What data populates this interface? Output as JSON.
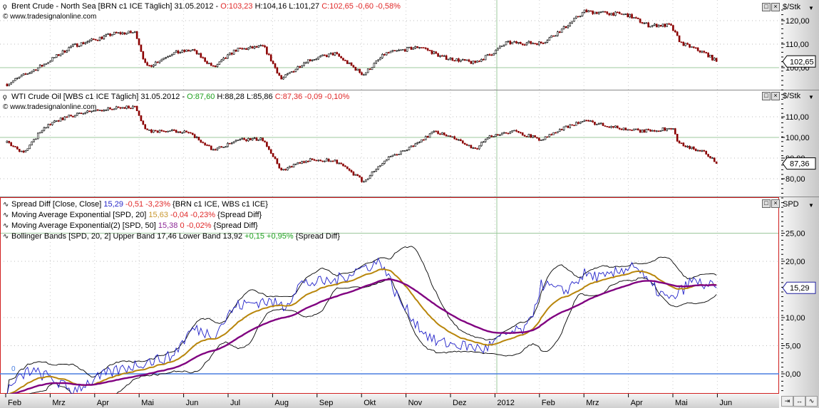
{
  "panels": {
    "brent": {
      "title": "Brent Crude - North Sea [BRN c1 ICE  Täglich] 31.05.2012 - ",
      "open": "O:103,23",
      "hl": " H:104,16 L:101,27 ",
      "close": "C:102,65 -0,60 -0,58%",
      "copyright": "www.tradesignalonline.com",
      "unit": "$/Stk",
      "ticks": [
        {
          "v": 120,
          "label": "120,00"
        },
        {
          "v": 110,
          "label": "110,00"
        },
        {
          "v": 100,
          "label": "100,00"
        }
      ],
      "last_label": "102,65",
      "last_value": 102.65
    },
    "wti": {
      "title": "WTI Crude Oil [WBS c1 ICE  Täglich] 31.05.2012 - ",
      "open": "O:87,60",
      "hl": " H:88,28 L:85,86 ",
      "close": "C:87,36 -0,09 -0,10%",
      "copyright": "www.tradesignalonline.com",
      "unit": "$/Stk",
      "ticks": [
        {
          "v": 110,
          "label": "110,00"
        },
        {
          "v": 100,
          "label": "100,00"
        },
        {
          "v": 90,
          "label": "90,00"
        },
        {
          "v": 80,
          "label": "80,00"
        }
      ],
      "last_label": "87,36",
      "last_value": 87.36
    },
    "spread": {
      "unit": "SPD",
      "zero_label": "0",
      "legend": [
        {
          "name": "Spread Diff [Close, Close] ",
          "v1": "15,29",
          "v1c": "blue",
          "v2": " -0,51 -3,23%",
          "v2c": "red",
          "tail": " {BRN c1 ICE, WBS c1 ICE}"
        },
        {
          "name": "Moving Average Exponential [SPD, 20] ",
          "v1": "15,63",
          "v1c": "gold",
          "v2": " -0,04 -0,23%",
          "v2c": "red",
          "tail": " {Spread Diff}"
        },
        {
          "name": "Moving Average Exponential(2) [SPD, 50] ",
          "v1": "15,38",
          "v1c": "purple",
          "v2": " 0 -0,02%",
          "v2c": "red",
          "tail": " {Spread Diff}"
        },
        {
          "name": "Bollinger Bands [SPD, 20, 2] Upper Band 17,46 Lower Band 13,92",
          "v1": "",
          "v1c": "",
          "v2": " +0,15 +0,95%",
          "v2c": "green",
          "tail": " {Spread Diff}"
        }
      ],
      "ticks": [
        {
          "v": 25,
          "label": "25,00"
        },
        {
          "v": 20,
          "label": "20,00"
        },
        {
          "v": 10,
          "label": "10,00"
        },
        {
          "v": 5,
          "label": "5,00"
        },
        {
          "v": 0,
          "label": "0,00"
        }
      ],
      "last_label": "15,29",
      "last_value": 15.29
    }
  },
  "time_axis": [
    "Feb",
    "Mrz",
    "Apr",
    "Mai",
    "Jun",
    "Jul",
    "Aug",
    "Sep",
    "Okt",
    "Nov",
    "Dez",
    "2012",
    "Feb",
    "Mrz",
    "Apr",
    "Mai",
    "Jun"
  ],
  "colors": {
    "up": "#ffffff",
    "down": "#8b0000",
    "ema20": "#b8860b",
    "ema50": "#800080",
    "spread": "#2020c8",
    "bands": "#000000",
    "zero": "#4a7fe0",
    "frame": "#d02020"
  },
  "chart_data": [
    {
      "type": "candlestick",
      "title": "Brent Crude - North Sea",
      "x_unit": "months since Feb 2011",
      "points": [
        [
          0.03,
          93
        ],
        [
          0.83,
          101
        ],
        [
          1.47,
          109
        ],
        [
          2.44,
          114.5
        ],
        [
          2.92,
          115
        ],
        [
          3.16,
          100
        ],
        [
          3.72,
          106
        ],
        [
          4.2,
          107.5
        ],
        [
          4.68,
          100
        ],
        [
          5.16,
          107.5
        ],
        [
          5.8,
          109
        ],
        [
          6.2,
          95
        ],
        [
          6.76,
          103
        ],
        [
          7.4,
          106
        ],
        [
          8.04,
          97
        ],
        [
          8.53,
          106
        ],
        [
          9.33,
          109
        ],
        [
          9.81,
          104.5
        ],
        [
          10.53,
          102
        ],
        [
          10.93,
          106
        ],
        [
          11.25,
          110.5
        ],
        [
          12.05,
          110.5
        ],
        [
          12.53,
          116.5
        ],
        [
          13.01,
          124
        ],
        [
          13.65,
          123
        ],
        [
          13.97,
          122.5
        ],
        [
          14.45,
          118
        ],
        [
          14.94,
          118
        ],
        [
          15.18,
          110.5
        ],
        [
          15.74,
          106
        ],
        [
          15.98,
          102.65
        ]
      ]
    },
    {
      "type": "candlestick",
      "title": "WTI Crude Oil",
      "x_unit": "months since Feb 2011",
      "points": [
        [
          0.03,
          97.5
        ],
        [
          0.43,
          92.5
        ],
        [
          0.83,
          104.5
        ],
        [
          1.31,
          109.5
        ],
        [
          1.96,
          113
        ],
        [
          2.92,
          115
        ],
        [
          3.16,
          103
        ],
        [
          4.04,
          103
        ],
        [
          4.68,
          94
        ],
        [
          5.32,
          99
        ],
        [
          5.8,
          99
        ],
        [
          6.2,
          84
        ],
        [
          6.76,
          89
        ],
        [
          7.4,
          89
        ],
        [
          8.04,
          78.6
        ],
        [
          8.53,
          89
        ],
        [
          9.17,
          96
        ],
        [
          9.65,
          103
        ],
        [
          10.13,
          99
        ],
        [
          10.53,
          94
        ],
        [
          10.93,
          101
        ],
        [
          11.41,
          103
        ],
        [
          12.05,
          99
        ],
        [
          12.69,
          106
        ],
        [
          13.01,
          108
        ],
        [
          13.81,
          104.5
        ],
        [
          14.29,
          103
        ],
        [
          15.02,
          104.5
        ],
        [
          15.1,
          97.5
        ],
        [
          15.74,
          92.5
        ],
        [
          15.98,
          87.36
        ]
      ]
    },
    {
      "type": "line",
      "title": "Spread Diff",
      "x_unit": "months since Feb 2011",
      "ylim": [
        -3,
        28
      ],
      "series": [
        "Spread Diff",
        "EMA 20",
        "EMA 50",
        "Bollinger Bands 20,2"
      ],
      "points": [
        [
          0.03,
          -3
        ],
        [
          0.51,
          0.6
        ],
        [
          0.99,
          -0.6
        ],
        [
          1.47,
          -3
        ],
        [
          2.28,
          0
        ],
        [
          3.08,
          2
        ],
        [
          3.72,
          3
        ],
        [
          4.2,
          8
        ],
        [
          4.68,
          7
        ],
        [
          5.16,
          12
        ],
        [
          5.8,
          13
        ],
        [
          6.28,
          12
        ],
        [
          6.6,
          16
        ],
        [
          7.4,
          16.5
        ],
        [
          7.88,
          18.4
        ],
        [
          8.44,
          20
        ],
        [
          8.85,
          13
        ],
        [
          9.33,
          8
        ],
        [
          9.65,
          5.7
        ],
        [
          10.29,
          5
        ],
        [
          10.77,
          4.4
        ],
        [
          11.25,
          7
        ],
        [
          11.73,
          8
        ],
        [
          12.05,
          16
        ],
        [
          12.53,
          14.5
        ],
        [
          13.01,
          17.7
        ],
        [
          13.49,
          17
        ],
        [
          14.13,
          19.6
        ],
        [
          14.45,
          16
        ],
        [
          14.94,
          13
        ],
        [
          15.42,
          16.5
        ],
        [
          15.98,
          15.29
        ]
      ]
    }
  ]
}
